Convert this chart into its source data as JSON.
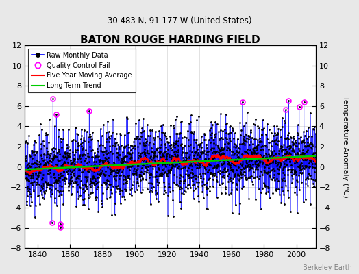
{
  "title": "BATON ROUGE HARDING FIELD",
  "subtitle": "30.483 N, 91.177 W (United States)",
  "ylabel": "Temperature Anomaly (°C)",
  "credit": "Berkeley Earth",
  "ylim": [
    -8,
    12
  ],
  "yticks": [
    -8,
    -6,
    -4,
    -2,
    0,
    2,
    4,
    6,
    8,
    10,
    12
  ],
  "xlim": [
    1832,
    2012
  ],
  "xticks": [
    1840,
    1860,
    1880,
    1900,
    1920,
    1940,
    1960,
    1980,
    2000
  ],
  "start_year": 1832,
  "end_year": 2012,
  "seed": 42,
  "raw_color": "#0000ff",
  "ma_color": "#ff0000",
  "trend_color": "#00cc00",
  "qc_color": "#ff00ff",
  "bg_color": "#e8e8e8",
  "plot_bg_color": "#ffffff",
  "grid_color": "#cccccc"
}
